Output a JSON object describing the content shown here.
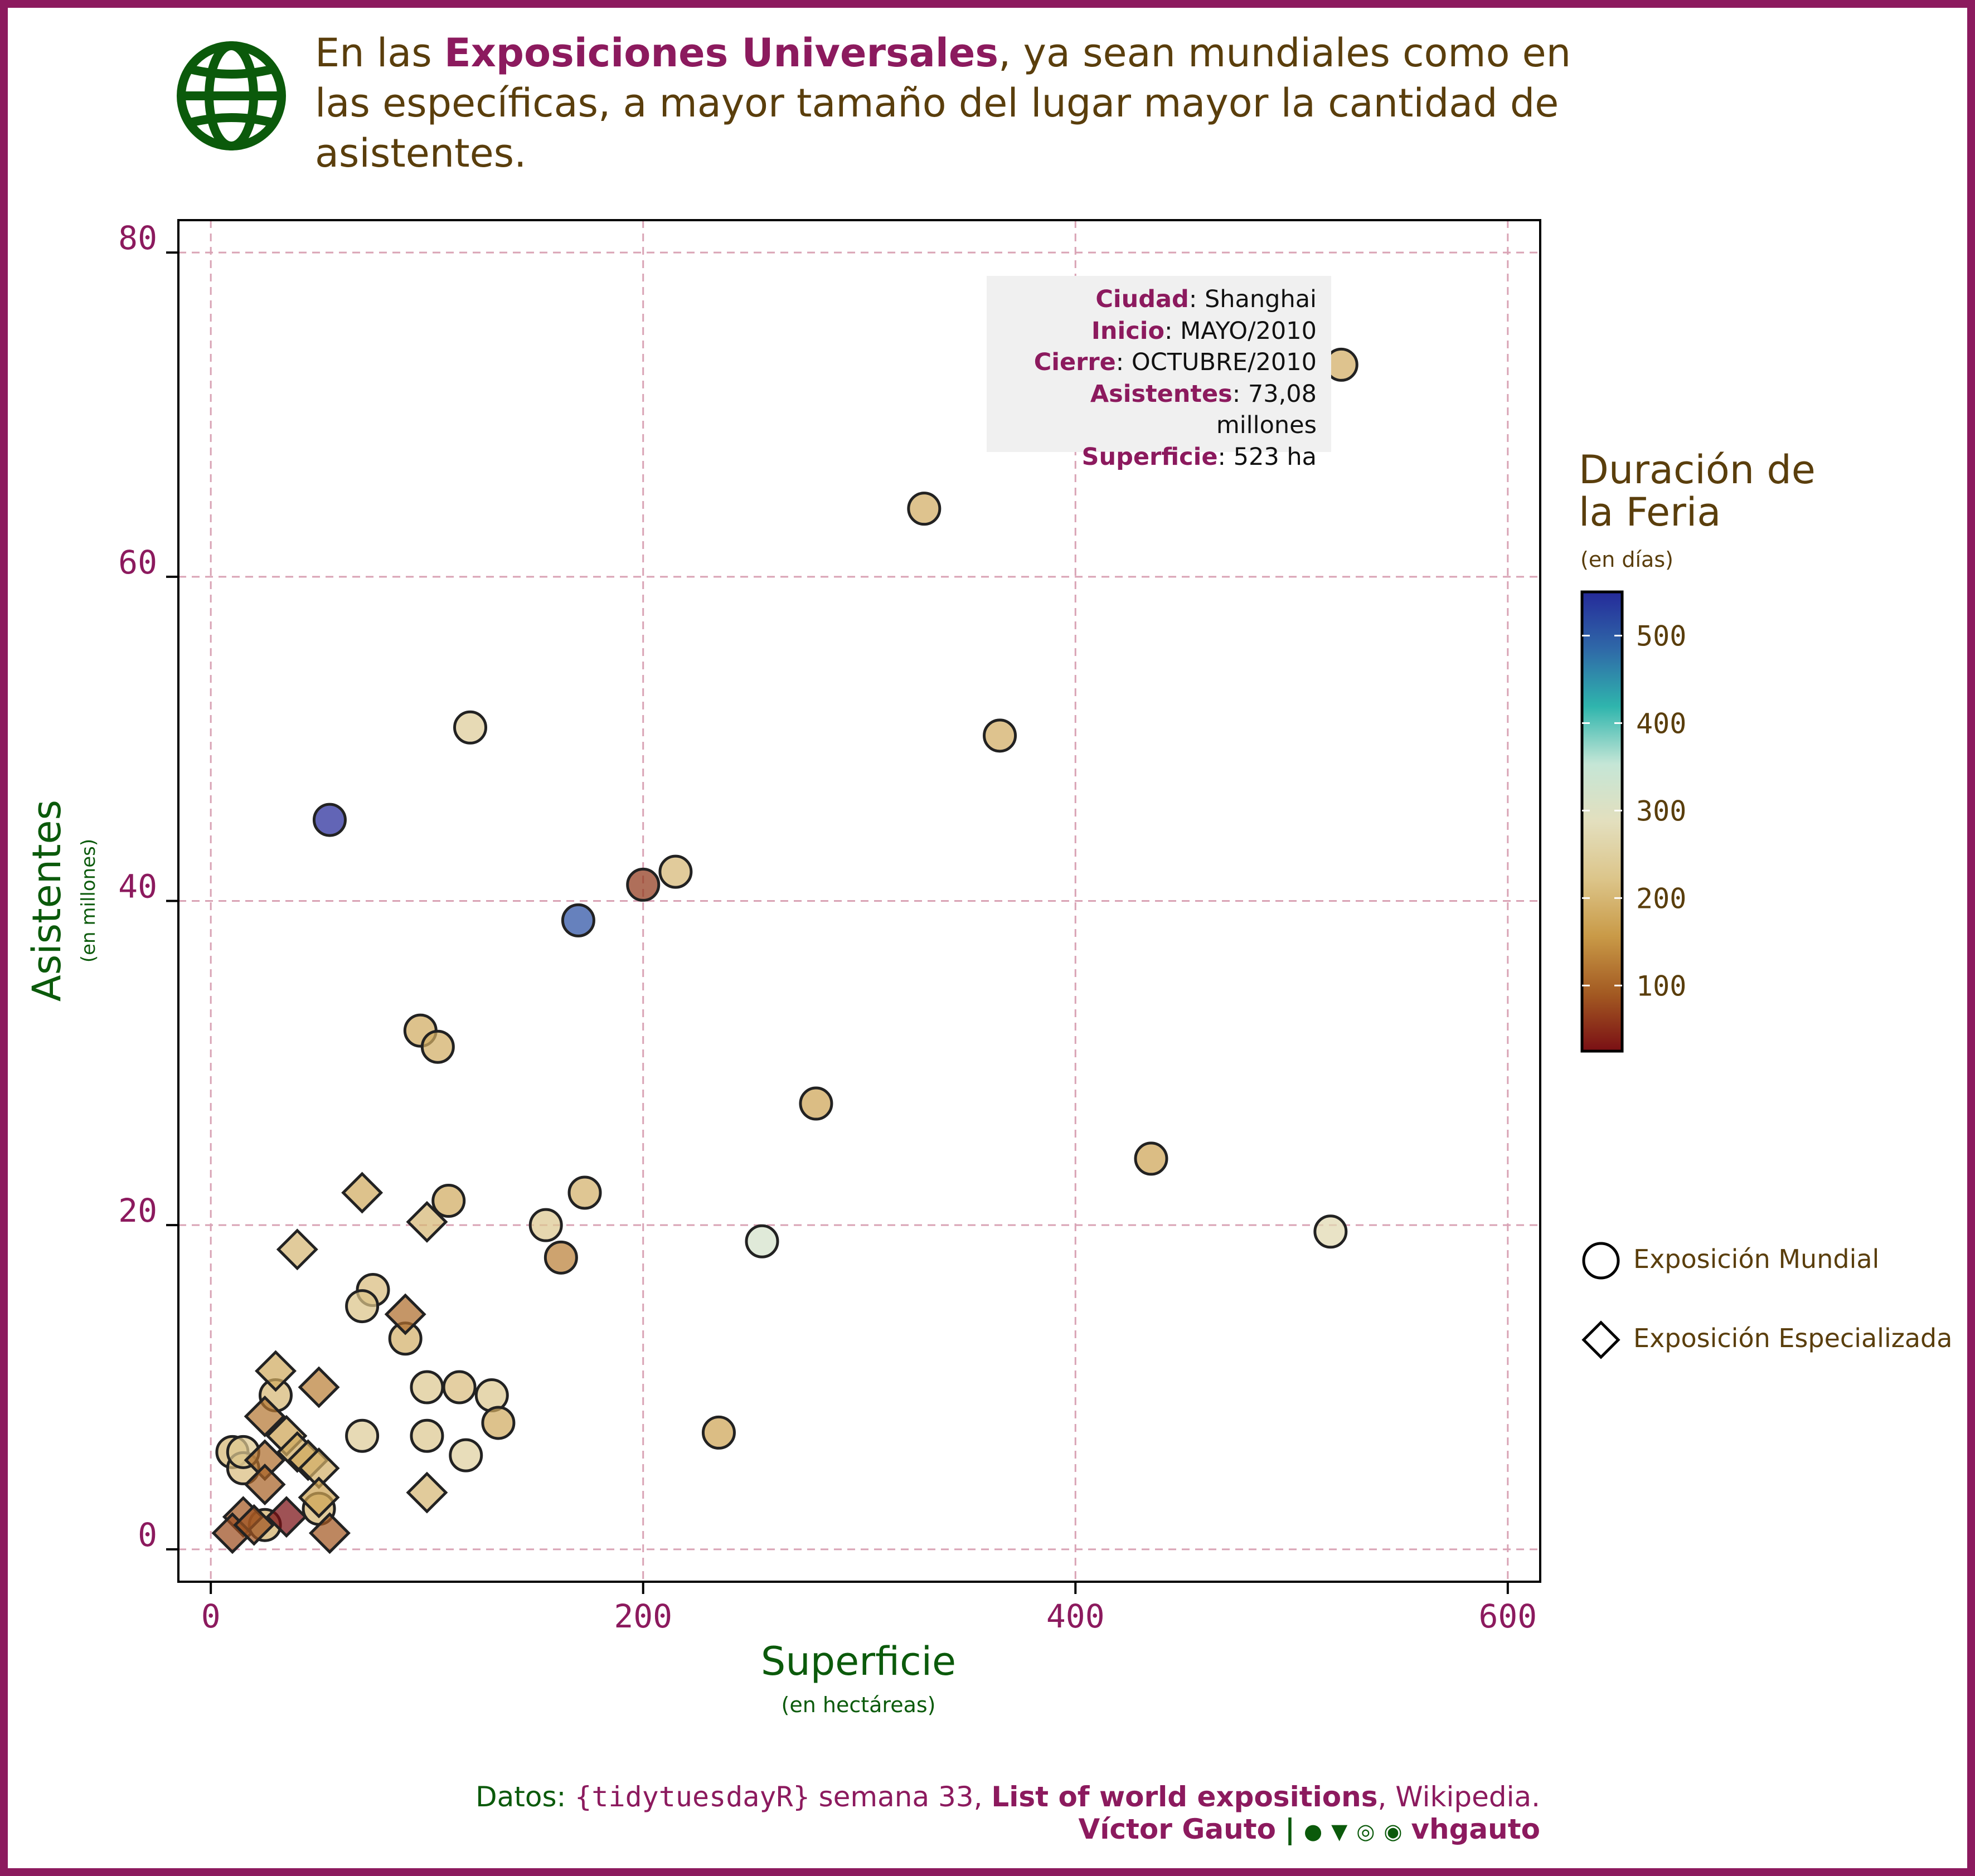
{
  "title": {
    "pre": "En las ",
    "bold": "Exposiciones Universales",
    "post": ", ya sean mundiales como en las específicas, a mayor tamaño del lugar mayor la cantidad de asistentes."
  },
  "annotation": {
    "rows": [
      {
        "key": "Ciudad",
        "value": ": Shanghai"
      },
      {
        "key": "Inicio",
        "value": ": MAYO/2010"
      },
      {
        "key": "Cierre",
        "value": ": OCTUBRE/2010"
      },
      {
        "key": "Asistentes",
        "value": ": 73,08 millones"
      },
      {
        "key": "Superficie",
        "value": ": 523 ha"
      }
    ]
  },
  "legend": {
    "title_line1": "Duración de",
    "title_line2": "la Feria",
    "subtitle": "(en días)",
    "ticks": [
      500,
      400,
      300,
      200,
      100
    ],
    "range": [
      25,
      550
    ],
    "shape_mundial": "Exposición Mundial",
    "shape_especializada": "Exposición Especializada"
  },
  "caption": {
    "line1_a": "Datos: ",
    "line1_pkg": "{tidytuesdayR}",
    "line1_b": " semana 33, ",
    "line1_bold": "List of world expositions",
    "line1_c": ", Wikipedia.",
    "author": "Víctor Gauto",
    "sep": "|",
    "handle": "vhgauto"
  },
  "colors": {
    "frame": "#8c1a5e",
    "title_text": "#5a3e0c",
    "accent": "#8c1a5e",
    "axis_title": "#0b5a0b",
    "grid": "#d9a3b5",
    "scale": [
      "#7a0f14",
      "#a35a22",
      "#c99a47",
      "#dcc58a",
      "#e3dfbe",
      "#c5e6d6",
      "#2fb5ad",
      "#2f69a8",
      "#252a9a"
    ]
  },
  "chart_data": {
    "type": "scatter",
    "xlabel": "Superficie",
    "xlabel_sub": "(en hectáreas)",
    "ylabel": "Asistentes",
    "ylabel_sub": "(en millones)",
    "xlim": [
      -15,
      615
    ],
    "ylim": [
      -2,
      82
    ],
    "xticks": [
      0,
      200,
      400,
      600
    ],
    "yticks": [
      0,
      20,
      40,
      60,
      80
    ],
    "color_by": "Duración (días)",
    "series": [
      {
        "name": "Exposición Mundial",
        "shape": "circle",
        "points": [
          {
            "x": 523,
            "y": 73.08,
            "d": 184
          },
          {
            "x": 330,
            "y": 64.2,
            "d": 183
          },
          {
            "x": 365,
            "y": 50.2,
            "d": 184
          },
          {
            "x": 120,
            "y": 50.7,
            "d": 240
          },
          {
            "x": 55,
            "y": 45,
            "d": 550
          },
          {
            "x": 215,
            "y": 41.8,
            "d": 200
          },
          {
            "x": 200,
            "y": 41,
            "d": 60
          },
          {
            "x": 170,
            "y": 38.8,
            "d": 510
          },
          {
            "x": 97,
            "y": 32,
            "d": 180
          },
          {
            "x": 105,
            "y": 31,
            "d": 185
          },
          {
            "x": 280,
            "y": 27.5,
            "d": 170
          },
          {
            "x": 435,
            "y": 24.1,
            "d": 170
          },
          {
            "x": 173,
            "y": 22,
            "d": 190
          },
          {
            "x": 110,
            "y": 21.5,
            "d": 180
          },
          {
            "x": 155,
            "y": 20,
            "d": 230
          },
          {
            "x": 255,
            "y": 19,
            "d": 320
          },
          {
            "x": 518,
            "y": 19.6,
            "d": 270
          },
          {
            "x": 162,
            "y": 18,
            "d": 130
          },
          {
            "x": 75,
            "y": 16,
            "d": 210
          },
          {
            "x": 70,
            "y": 15,
            "d": 220
          },
          {
            "x": 90,
            "y": 13,
            "d": 190
          },
          {
            "x": 100,
            "y": 10,
            "d": 230
          },
          {
            "x": 115,
            "y": 10,
            "d": 210
          },
          {
            "x": 130,
            "y": 9.5,
            "d": 230
          },
          {
            "x": 133,
            "y": 7.8,
            "d": 180
          },
          {
            "x": 100,
            "y": 7,
            "d": 230
          },
          {
            "x": 70,
            "y": 7,
            "d": 240
          },
          {
            "x": 118,
            "y": 5.8,
            "d": 250
          },
          {
            "x": 235,
            "y": 7.2,
            "d": 170
          },
          {
            "x": 30,
            "y": 9.5,
            "d": 200
          },
          {
            "x": 10,
            "y": 6,
            "d": 200
          },
          {
            "x": 15,
            "y": 5,
            "d": 210
          },
          {
            "x": 15,
            "y": 6,
            "d": 230
          },
          {
            "x": 25,
            "y": 1.5,
            "d": 190
          },
          {
            "x": 50,
            "y": 2.5,
            "d": 200
          }
        ]
      },
      {
        "name": "Exposición Especializada",
        "shape": "diamond",
        "points": [
          {
            "x": 70,
            "y": 22,
            "d": 180
          },
          {
            "x": 100,
            "y": 20.2,
            "d": 200
          },
          {
            "x": 40,
            "y": 18.5,
            "d": 200
          },
          {
            "x": 90,
            "y": 14.5,
            "d": 110
          },
          {
            "x": 30,
            "y": 11,
            "d": 180
          },
          {
            "x": 50,
            "y": 10,
            "d": 130
          },
          {
            "x": 25,
            "y": 8.2,
            "d": 120
          },
          {
            "x": 35,
            "y": 7,
            "d": 170
          },
          {
            "x": 40,
            "y": 6,
            "d": 180
          },
          {
            "x": 45,
            "y": 5.5,
            "d": 180
          },
          {
            "x": 50,
            "y": 5,
            "d": 190
          },
          {
            "x": 25,
            "y": 5.5,
            "d": 110
          },
          {
            "x": 25,
            "y": 4,
            "d": 100
          },
          {
            "x": 50,
            "y": 3.2,
            "d": 170
          },
          {
            "x": 100,
            "y": 3.5,
            "d": 200
          },
          {
            "x": 35,
            "y": 2,
            "d": 25
          },
          {
            "x": 15,
            "y": 2,
            "d": 90
          },
          {
            "x": 55,
            "y": 1,
            "d": 90
          },
          {
            "x": 10,
            "y": 1,
            "d": 80
          },
          {
            "x": 20,
            "y": 1.5,
            "d": 85
          }
        ]
      }
    ]
  }
}
